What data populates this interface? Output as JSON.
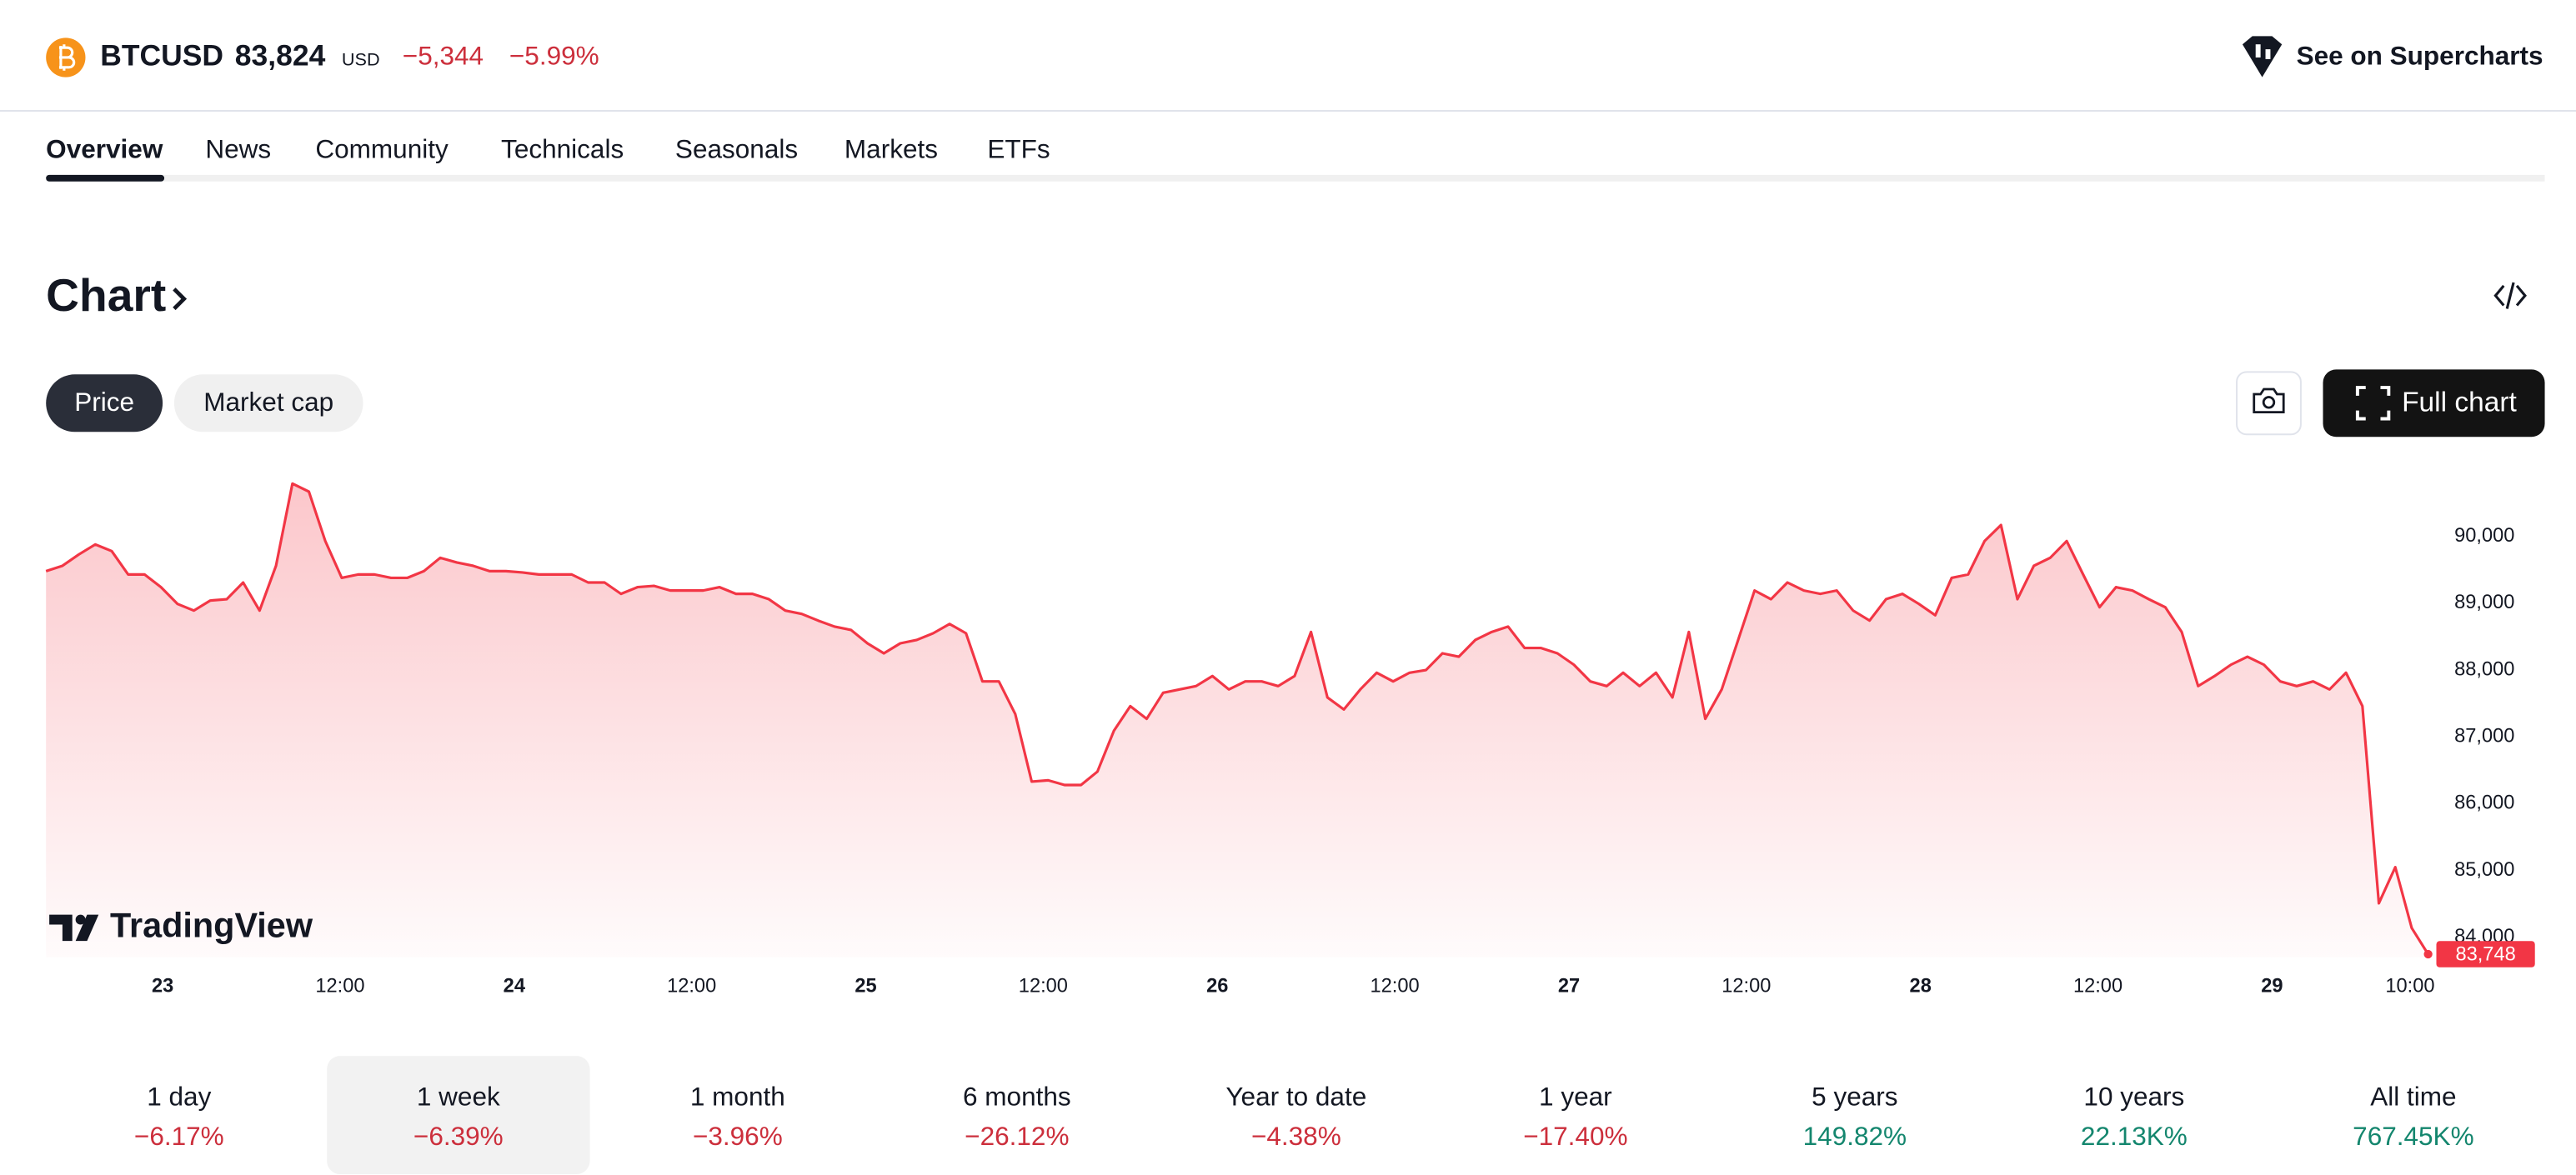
{
  "header": {
    "symbol": "BTCUSD",
    "price": "83,824",
    "currency": "USD",
    "change": "−5,344",
    "change_percent": "−5.99%",
    "supercharts": "See on Supercharts"
  },
  "tabs": [
    "Overview",
    "News",
    "Community",
    "Technicals",
    "Seasonals",
    "Markets",
    "ETFs"
  ],
  "section_title": "Chart",
  "toggles": [
    "Price",
    "Market cap"
  ],
  "full_chart": "Full chart",
  "watermark": "TradingView",
  "chart": {
    "type": "line",
    "ylim": [
      83700,
      90900
    ],
    "yticks": [
      {
        "value": 84000,
        "label": "84,000"
      },
      {
        "value": 85000,
        "label": "85,000"
      },
      {
        "value": 86000,
        "label": "86,000"
      },
      {
        "value": 87000,
        "label": "87,000"
      },
      {
        "value": 88000,
        "label": "88,000"
      },
      {
        "value": 89000,
        "label": "89,000"
      },
      {
        "value": 90000,
        "label": "90,000"
      }
    ],
    "xlabels": [
      "23",
      "12:00",
      "24",
      "12:00",
      "25",
      "12:00",
      "26",
      "12:00",
      "27",
      "12:00",
      "28",
      "12:00",
      "29",
      "10:00"
    ],
    "series": [
      {
        "color": "#f23645",
        "values": [
          89480,
          89560,
          89730,
          89880,
          89780,
          89430,
          89430,
          89240,
          88990,
          88890,
          89040,
          89060,
          89310,
          88890,
          89560,
          90790,
          90670,
          89930,
          89380,
          89430,
          89430,
          89380,
          89380,
          89480,
          89680,
          89610,
          89560,
          89480,
          89480,
          89460,
          89430,
          89430,
          89430,
          89310,
          89310,
          89140,
          89240,
          89260,
          89190,
          89190,
          89190,
          89240,
          89140,
          89140,
          89060,
          88890,
          88840,
          88740,
          88650,
          88600,
          88400,
          88250,
          88400,
          88450,
          88550,
          88690,
          88550,
          87830,
          87830,
          87340,
          86330,
          86350,
          86280,
          86280,
          86480,
          87090,
          87460,
          87270,
          87660,
          87710,
          87760,
          87910,
          87710,
          87830,
          87830,
          87760,
          87910,
          88570,
          87590,
          87410,
          87710,
          87960,
          87830,
          87960,
          88000,
          88250,
          88200,
          88450,
          88570,
          88650,
          88330,
          88330,
          88250,
          88080,
          87830,
          87760,
          87960,
          87760,
          87960,
          87590,
          88570,
          87270,
          87710,
          88450,
          89190,
          89060,
          89310,
          89190,
          89140,
          89190,
          88890,
          88740,
          89060,
          89140,
          88990,
          88820,
          89380,
          89430,
          89930,
          90170,
          89060,
          89560,
          89680,
          89930,
          89430,
          88940,
          89240,
          89190,
          89060,
          88940,
          88570,
          87760,
          87910,
          88080,
          88200,
          88080,
          87830,
          87760,
          87830,
          87710,
          87960,
          87460,
          84510,
          85050,
          84140,
          83748
        ]
      }
    ],
    "price_tag": {
      "value": 83748,
      "label": "83,748"
    }
  },
  "periods": [
    {
      "label": "1 day",
      "change": "−6.17%",
      "color": "#cc2f3c"
    },
    {
      "label": "1 week",
      "change": "−6.39%",
      "color": "#cc2f3c",
      "selected": true
    },
    {
      "label": "1 month",
      "change": "−3.96%",
      "color": "#cc2f3c"
    },
    {
      "label": "6 months",
      "change": "−26.12%",
      "color": "#cc2f3c"
    },
    {
      "label": "Year to date",
      "change": "−4.38%",
      "color": "#cc2f3c"
    },
    {
      "label": "1 year",
      "change": "−17.40%",
      "color": "#cc2f3c"
    },
    {
      "label": "5 years",
      "change": "149.82%",
      "color": "#14866e"
    },
    {
      "label": "10 years",
      "change": "22.13K%",
      "color": "#14866e"
    },
    {
      "label": "All time",
      "change": "767.45K%",
      "color": "#14866e"
    }
  ]
}
